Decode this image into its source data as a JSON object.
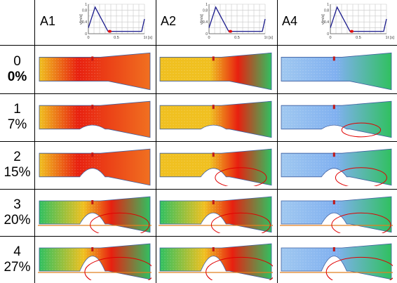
{
  "columns": [
    {
      "id": "A1",
      "label": "A1"
    },
    {
      "id": "A2",
      "label": "A2"
    },
    {
      "id": "A4",
      "label": "A4"
    }
  ],
  "rows": [
    {
      "index": "0",
      "percent": "0%",
      "severity": 0.0
    },
    {
      "index": "1",
      "percent": "7%",
      "severity": 0.07
    },
    {
      "index": "2",
      "percent": "15%",
      "severity": 0.15
    },
    {
      "index": "3",
      "percent": "20%",
      "severity": 0.2
    },
    {
      "index": "4",
      "percent": "27%",
      "severity": 0.27
    }
  ],
  "mini_chart": {
    "y_label": "v[m/s]",
    "x_label": "t [s]",
    "x_ticks": [
      "0",
      "0.5",
      "1"
    ],
    "y_ticks": [
      "0",
      "0.2",
      "0.4",
      "0.6",
      "0.8",
      "1"
    ],
    "points": [
      [
        0,
        0.2
      ],
      [
        0.12,
        0.9
      ],
      [
        0.35,
        0.08
      ],
      [
        0.95,
        0.08
      ],
      [
        1.0,
        0.5
      ]
    ],
    "marker_t": 0.38,
    "line_color": "#1a1a8c",
    "marker_color": "#e01010"
  },
  "colors": {
    "high": "#e82010",
    "mid": "#f0c020",
    "low": "#30c060",
    "calm": "#a0c8f0",
    "ellipse": "#e00000",
    "wall": "#e08020"
  }
}
